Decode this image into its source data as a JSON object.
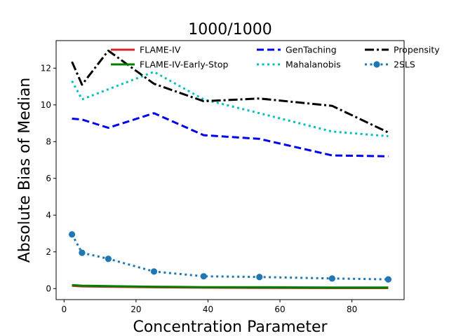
{
  "chart_data": {
    "type": "line",
    "title": "1000/1000",
    "xlabel": "Concentration Parameter",
    "ylabel": "Absolute Bias of Median",
    "xlim": [
      -2.2,
      94.5
    ],
    "ylim": [
      -0.6,
      13.5
    ],
    "xticks": [
      0,
      20,
      40,
      60,
      80
    ],
    "yticks": [
      0,
      2,
      4,
      6,
      8,
      10,
      12
    ],
    "grid": false,
    "legend": "top",
    "series": [
      {
        "name": "FLAME-IV",
        "color": "#d62728",
        "style": "solid",
        "width": 3,
        "x": [
          2.2,
          5.0,
          12.3,
          25.0,
          38.8,
          54.3,
          74.5,
          90.1
        ],
        "y": [
          0.15,
          0.12,
          0.1,
          0.07,
          0.05,
          0.04,
          0.03,
          0.03
        ]
      },
      {
        "name": "FLAME-IV-Early-Stop",
        "color": "#008000",
        "style": "solid",
        "width": 3,
        "x": [
          2.2,
          5.0,
          12.3,
          25.0,
          38.8,
          54.3,
          74.5,
          90.1
        ],
        "y": [
          0.19,
          0.16,
          0.13,
          0.1,
          0.08,
          0.07,
          0.06,
          0.06
        ]
      },
      {
        "name": "GenTaching",
        "color": "#0000ee",
        "style": "dashed",
        "width": 3,
        "x": [
          2.2,
          5.0,
          12.3,
          25.0,
          38.8,
          54.3,
          74.5,
          90.1
        ],
        "y": [
          9.25,
          9.2,
          8.75,
          9.55,
          8.35,
          8.15,
          7.25,
          7.2
        ]
      },
      {
        "name": "Mahalanobis",
        "color": "#00bfbf",
        "style": "dotted",
        "width": 3,
        "x": [
          2.2,
          5.0,
          12.3,
          25.0,
          38.8,
          54.3,
          74.5,
          90.1
        ],
        "y": [
          11.3,
          10.3,
          10.85,
          11.8,
          10.3,
          9.55,
          8.55,
          8.3
        ]
      },
      {
        "name": "Propensity",
        "color": "#000000",
        "style": "dashdot",
        "width": 3,
        "x": [
          2.2,
          5.0,
          12.3,
          25.0,
          38.8,
          54.3,
          74.5,
          90.1
        ],
        "y": [
          12.35,
          11.1,
          12.95,
          11.15,
          10.2,
          10.35,
          9.95,
          8.5
        ]
      },
      {
        "name": "2SLS",
        "color": "#1f77b4",
        "style": "dotted-markers",
        "width": 3,
        "x": [
          2.2,
          5.0,
          12.3,
          25.0,
          38.8,
          54.3,
          74.5,
          90.1
        ],
        "y": [
          2.95,
          1.95,
          1.62,
          0.93,
          0.67,
          0.63,
          0.55,
          0.5
        ]
      }
    ]
  }
}
